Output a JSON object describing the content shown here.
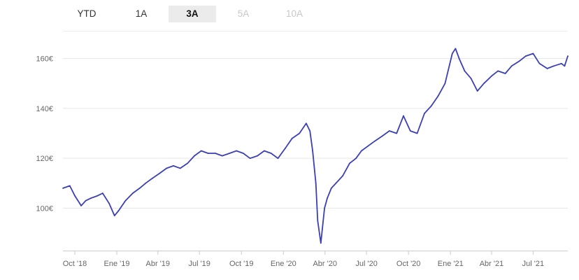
{
  "range_tabs": {
    "items": [
      {
        "label": "YTD",
        "state": "normal"
      },
      {
        "label": "1A",
        "state": "normal"
      },
      {
        "label": "3A",
        "state": "active"
      },
      {
        "label": "5A",
        "state": "disabled"
      },
      {
        "label": "10A",
        "state": "disabled"
      }
    ]
  },
  "chart_data": {
    "type": "line",
    "title": "",
    "xlabel": "",
    "ylabel": "",
    "colors": {
      "line": "#3b3fb6",
      "grid": "#e6e6e6",
      "axis": "#cccccc"
    },
    "grid": true,
    "ylim": [
      83,
      170
    ],
    "y_ticks": [
      {
        "value": 100,
        "label": "100€"
      },
      {
        "value": 120,
        "label": "120€"
      },
      {
        "value": 140,
        "label": "140€"
      },
      {
        "value": 160,
        "label": "160€"
      }
    ],
    "xlim": [
      "2018-09-05",
      "2021-09-15"
    ],
    "x_ticks": [
      {
        "date": "2018-10-01",
        "label": "Oct '18"
      },
      {
        "date": "2019-01-01",
        "label": "Ene '19"
      },
      {
        "date": "2019-04-01",
        "label": "Abr '19"
      },
      {
        "date": "2019-07-01",
        "label": "Jul '19"
      },
      {
        "date": "2019-10-01",
        "label": "Oct '19"
      },
      {
        "date": "2020-01-01",
        "label": "Ene '20"
      },
      {
        "date": "2020-04-01",
        "label": "Abr '20"
      },
      {
        "date": "2020-07-01",
        "label": "Jul '20"
      },
      {
        "date": "2020-10-01",
        "label": "Oct '20"
      },
      {
        "date": "2021-01-01",
        "label": "Ene '21"
      },
      {
        "date": "2021-04-01",
        "label": "Abr '21"
      },
      {
        "date": "2021-07-01",
        "label": "Jul '21"
      }
    ],
    "series": [
      {
        "x": [
          "2018-09-05",
          "2018-09-20",
          "2018-10-01",
          "2018-10-15",
          "2018-10-25",
          "2018-11-05",
          "2018-11-20",
          "2018-12-01",
          "2018-12-15",
          "2018-12-27",
          "2019-01-05",
          "2019-01-20",
          "2019-02-05",
          "2019-02-20",
          "2019-03-05",
          "2019-03-20",
          "2019-04-05",
          "2019-04-20",
          "2019-05-05",
          "2019-05-20",
          "2019-06-05",
          "2019-06-20",
          "2019-07-05",
          "2019-07-20",
          "2019-08-05",
          "2019-08-20",
          "2019-09-05",
          "2019-09-20",
          "2019-10-05",
          "2019-10-20",
          "2019-11-05",
          "2019-11-20",
          "2019-12-05",
          "2019-12-20",
          "2020-01-05",
          "2020-01-20",
          "2020-02-05",
          "2020-02-20",
          "2020-02-28",
          "2020-03-05",
          "2020-03-12",
          "2020-03-16",
          "2020-03-23",
          "2020-03-31",
          "2020-04-06",
          "2020-04-15",
          "2020-04-25",
          "2020-05-10",
          "2020-05-25",
          "2020-06-08",
          "2020-06-20",
          "2020-07-05",
          "2020-07-20",
          "2020-08-05",
          "2020-08-20",
          "2020-09-05",
          "2020-09-20",
          "2020-10-05",
          "2020-10-20",
          "2020-11-05",
          "2020-11-20",
          "2020-12-05",
          "2020-12-20",
          "2021-01-05",
          "2021-01-12",
          "2021-01-20",
          "2021-02-01",
          "2021-02-15",
          "2021-03-01",
          "2021-03-15",
          "2021-04-01",
          "2021-04-15",
          "2021-05-01",
          "2021-05-15",
          "2021-06-01",
          "2021-06-15",
          "2021-07-01",
          "2021-07-15",
          "2021-08-01",
          "2021-08-15",
          "2021-09-01",
          "2021-09-08",
          "2021-09-15"
        ],
        "y": [
          108,
          109,
          105,
          101,
          103,
          104,
          105,
          106,
          102,
          97,
          99,
          103,
          106,
          108,
          110,
          112,
          114,
          116,
          117,
          116,
          118,
          121,
          123,
          122,
          122,
          121,
          122,
          123,
          122,
          120,
          121,
          123,
          122,
          120,
          124,
          128,
          130,
          134,
          131,
          123,
          110,
          95,
          86,
          100,
          104,
          108,
          110,
          113,
          118,
          120,
          123,
          125,
          127,
          129,
          131,
          130,
          137,
          131,
          130,
          138,
          141,
          145,
          150,
          162,
          164,
          160,
          155,
          152,
          147,
          150,
          153,
          155,
          154,
          157,
          159,
          161,
          162,
          158,
          156,
          157,
          158,
          157,
          161
        ]
      }
    ]
  }
}
